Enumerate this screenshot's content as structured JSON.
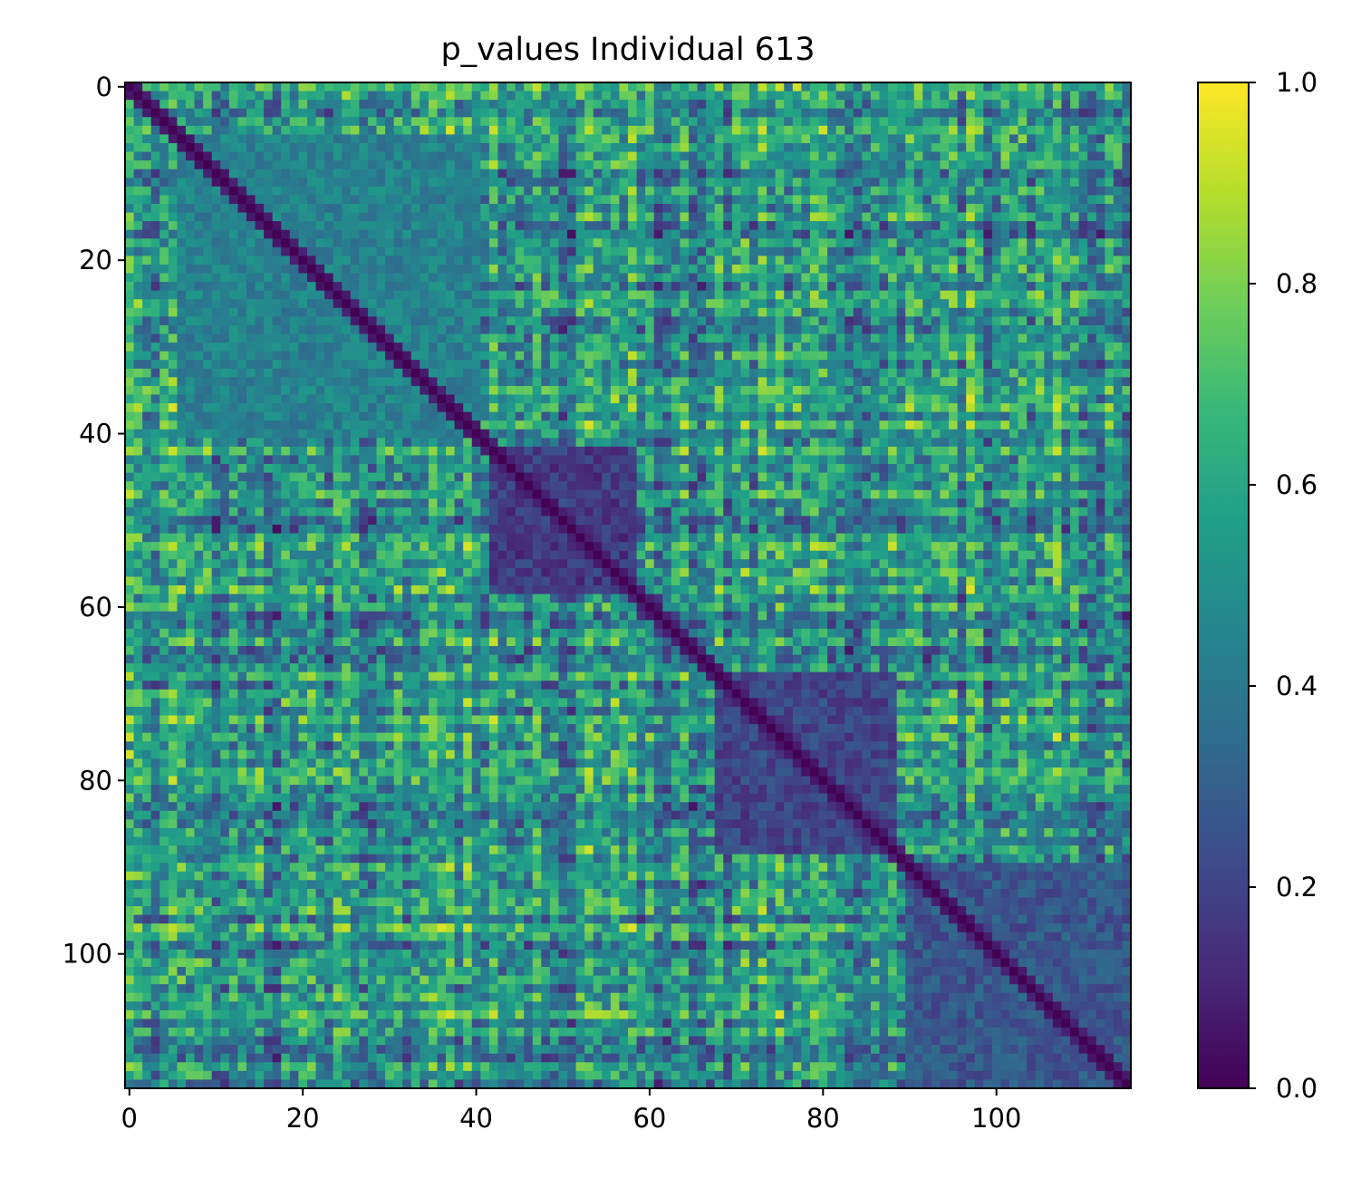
{
  "chart_data": {
    "type": "heatmap",
    "title": "p_values Individual 613",
    "matrix_size": 116,
    "x_ticks": [
      0,
      20,
      40,
      60,
      80,
      100
    ],
    "y_ticks": [
      0,
      20,
      40,
      60,
      80,
      100
    ],
    "x_tick_labels": [
      "0",
      "20",
      "40",
      "60",
      "80",
      "100"
    ],
    "y_tick_labels": [
      "0",
      "20",
      "40",
      "60",
      "80",
      "100"
    ],
    "xlim": [
      -0.5,
      115.5
    ],
    "ylim": [
      115.5,
      -0.5
    ],
    "diagonal_value": 0.0,
    "value_range": [
      0.0,
      1.0
    ],
    "colormap": "viridis",
    "colorbar": {
      "min": 0.0,
      "max": 1.0,
      "ticks": [
        0.0,
        0.2,
        0.4,
        0.6,
        0.8,
        1.0
      ],
      "tick_labels": [
        "0.0",
        "0.2",
        "0.4",
        "0.6",
        "0.8",
        "1.0"
      ]
    },
    "low_value_blocks": [
      {
        "rows": [
          42,
          58
        ],
        "cols": [
          42,
          58
        ],
        "level": 0.08
      },
      {
        "rows": [
          68,
          88
        ],
        "cols": [
          68,
          88
        ],
        "level": 0.12
      },
      {
        "rows": [
          90,
          115
        ],
        "cols": [
          90,
          115
        ],
        "level": 0.18
      },
      {
        "rows": [
          6,
          40
        ],
        "cols": [
          6,
          40
        ],
        "level": 0.35
      }
    ],
    "grid": false
  },
  "colors": {
    "viridis_stops": [
      "#440154",
      "#482878",
      "#3e4989",
      "#31688e",
      "#26828e",
      "#1f9e89",
      "#35b779",
      "#6ece58",
      "#b5de2b",
      "#fde725"
    ],
    "axis": "#000000",
    "background": "#ffffff"
  }
}
